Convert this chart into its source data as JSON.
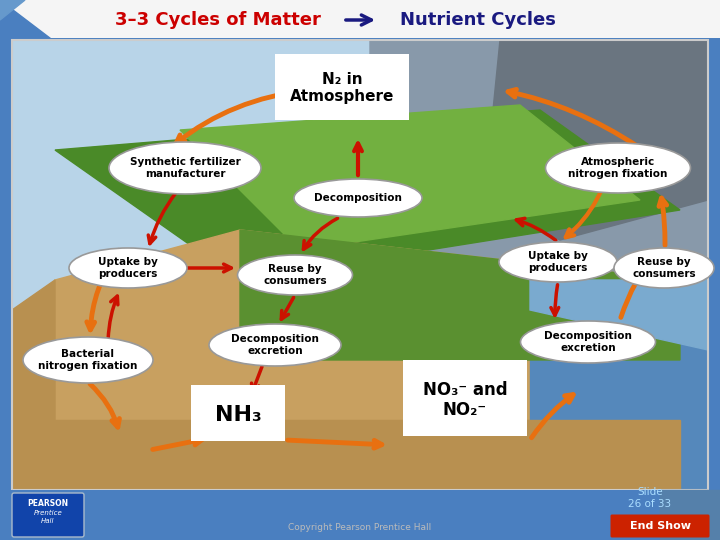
{
  "title_left": "3–3 Cycles of Matter",
  "title_right": "Nutrient Cycles",
  "title_left_color": "#cc0000",
  "title_right_color": "#1a1a80",
  "header_bg": "#f5f5f5",
  "bg_color": "#4a7fc0",
  "slide_text": "Slide\n26 of 33",
  "slide_text_color": "#aaddff",
  "end_show_bg": "#cc2200",
  "end_show_text": "End Show",
  "copyright": "Copyright Pearson Prentice Hall",
  "labels": {
    "n2_atm": "N₂ in\nAtmosphere",
    "synthetic": "Synthetic fertilizer\nmanufacturer",
    "decomp_top": "Decomposition",
    "atm_fix": "Atmospheric\nnitrogen fixation",
    "uptake_left": "Uptake by\nproducers",
    "reuse_mid": "Reuse by\nconsumers",
    "uptake_right": "Uptake by\nproducers",
    "reuse_right": "Reuse by\nconsumers",
    "bact_fix": "Bacterial\nnitrogen fixation",
    "decomp_mid": "Decomposition\nexcretion",
    "decomp_right": "Decomposition\nexcretion",
    "nh3": "NH₃",
    "no3_no2": "NO₃⁻ and\nNO₂⁻"
  },
  "ellipse_fc": "#ffffff",
  "ellipse_ec": "#999999",
  "arrow_orange": "#e87010",
  "arrow_red": "#cc1100",
  "sky_left": "#b8d4e8",
  "sky_right": "#888899",
  "green_dark": "#4a8a28",
  "green_mid": "#72b040",
  "soil_color": "#c8a060",
  "water_color": "#5588bb",
  "diagram_border": "#cccccc"
}
